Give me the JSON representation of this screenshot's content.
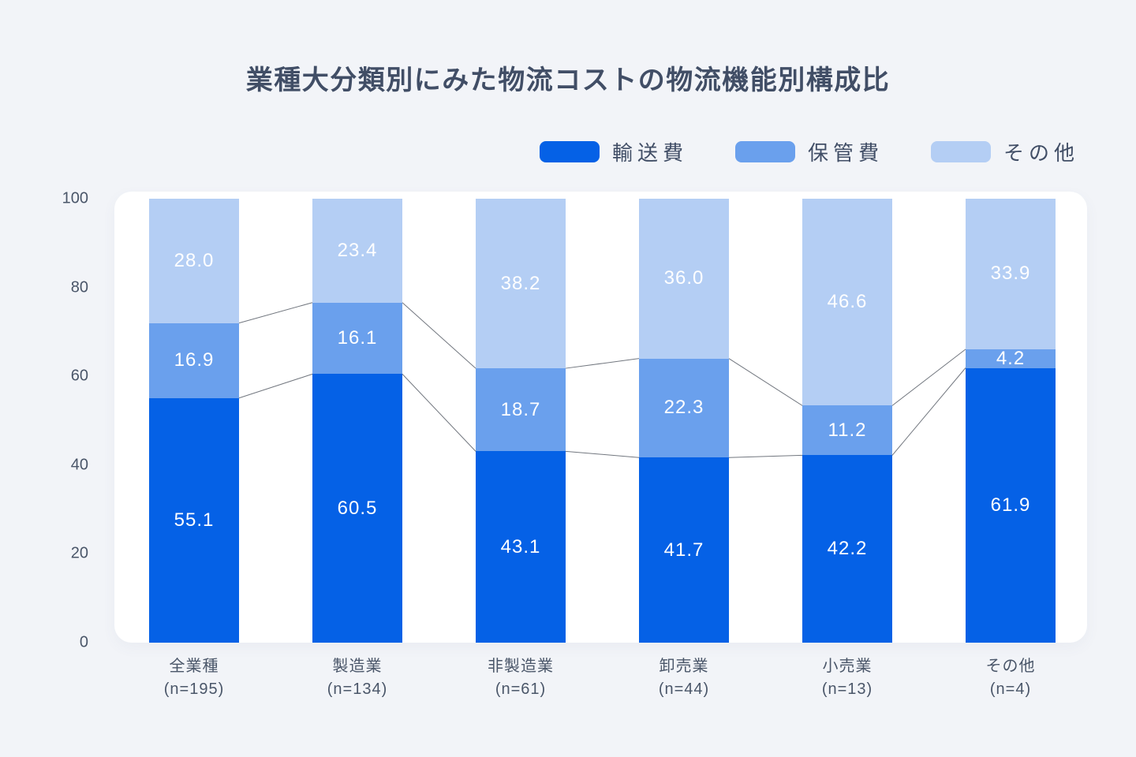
{
  "title": "業種大分類別にみた物流コストの物流機能別構成比",
  "colors": {
    "page_background": "#f2f4f8",
    "plot_background": "#ffffff",
    "title_text": "#414e66",
    "axis_text": "#4a5669",
    "value_text": "#ffffff",
    "connector_line": "#72777f"
  },
  "chart_data": {
    "type": "bar",
    "stacked": true,
    "title": "業種大分類別にみた物流コストの物流機能別構成比",
    "categories": [
      "全業種",
      "製造業",
      "非製造業",
      "卸売業",
      "小売業",
      "その他"
    ],
    "category_counts": [
      "(n=195)",
      "(n=134)",
      "(n=61)",
      "(n=44)",
      "(n=13)",
      "(n=4)"
    ],
    "series": [
      {
        "name": "輸送費",
        "color": "#0561e6",
        "values": [
          55.1,
          60.5,
          43.1,
          41.7,
          42.2,
          61.9
        ]
      },
      {
        "name": "保管費",
        "color": "#6aa0ed",
        "values": [
          16.9,
          16.1,
          18.7,
          22.3,
          11.2,
          4.2
        ]
      },
      {
        "name": "その他",
        "color": "#b4cef4",
        "values": [
          28.0,
          23.4,
          38.2,
          36.0,
          46.6,
          33.9
        ]
      }
    ],
    "yticks": [
      0,
      20,
      40,
      60,
      80,
      100
    ],
    "ylim": [
      0,
      100
    ],
    "xlabel": "",
    "ylabel": "",
    "grid": false,
    "legend_position": "top-right",
    "connector_lines": true
  }
}
